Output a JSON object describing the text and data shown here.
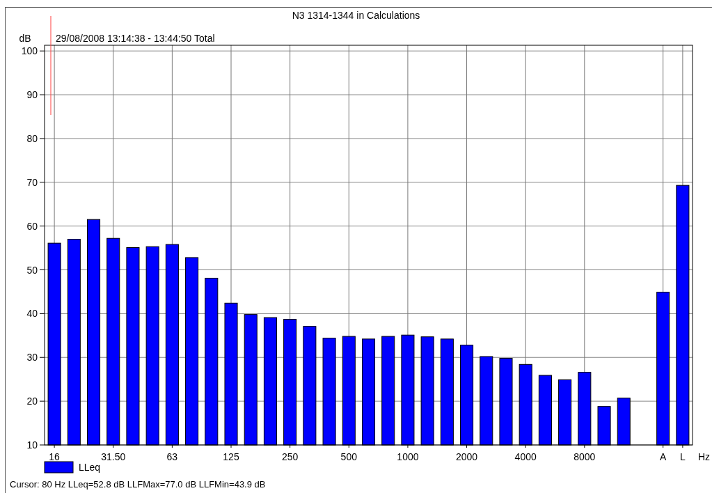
{
  "chart_data": {
    "type": "bar",
    "title": "N3 1314-1344 in Calculations",
    "subtitle": "29/08/2008 13:14:38 - 13:44:50  Total",
    "xlabel": "Hz",
    "ylabel": "dB",
    "categories": [
      "16",
      null,
      null,
      "31.50",
      null,
      null,
      "63",
      null,
      null,
      "125",
      null,
      null,
      "250",
      null,
      null,
      "500",
      null,
      null,
      "1000",
      null,
      null,
      "2000",
      null,
      null,
      "4000",
      null,
      null,
      "8000",
      null,
      null,
      null,
      "A",
      "L"
    ],
    "series": [
      {
        "name": "LLeq",
        "color": "#0000ff",
        "values": [
          56.1,
          57.0,
          61.5,
          57.2,
          55.1,
          55.3,
          55.8,
          52.8,
          48.1,
          42.4,
          39.8,
          39.1,
          38.7,
          37.1,
          34.4,
          34.8,
          34.2,
          34.8,
          35.1,
          34.7,
          34.2,
          32.8,
          30.2,
          29.8,
          28.4,
          25.9,
          24.9,
          26.6,
          18.8,
          20.7,
          10,
          44.9,
          69.3
        ]
      }
    ],
    "ylim": [
      10,
      101.3
    ],
    "yticks": [
      10,
      20,
      30,
      40,
      50,
      60,
      70,
      80,
      90,
      100
    ],
    "grid": true,
    "legend": "bottom left",
    "annotations": [
      "Cursor: 80 Hz  LLeq=52.8 dB  LLFMax=77.0 dB  LLFMin=43.9 dB"
    ]
  }
}
